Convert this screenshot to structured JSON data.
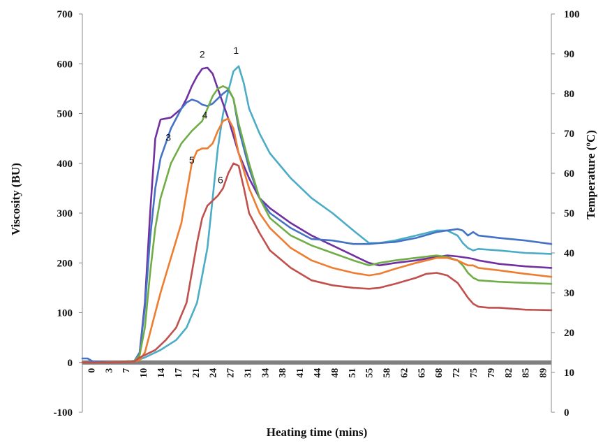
{
  "chart_data": {
    "type": "line",
    "title": "",
    "xlabel": "Heating time (mins)",
    "ylabel": "Viscosity (BU)",
    "y2label": "Temperature (ºC)",
    "xlim": [
      0,
      90
    ],
    "ylim": [
      -100,
      700
    ],
    "y2lim": [
      0,
      100
    ],
    "xticks": [
      "0",
      "3",
      "7",
      "10",
      "14",
      "17",
      "21",
      "24",
      "27",
      "31",
      "34",
      "38",
      "41",
      "44",
      "48",
      "51",
      "55",
      "58",
      "62",
      "65",
      "68",
      "72",
      "75",
      "79",
      "82",
      "85",
      "89"
    ],
    "yticks": [
      -100,
      0,
      100,
      200,
      300,
      400,
      500,
      600,
      700
    ],
    "y2ticks": [
      0,
      10,
      20,
      30,
      40,
      50,
      60,
      70,
      80,
      90,
      100
    ],
    "grid": false,
    "legend": "none",
    "baseline": {
      "y": 0,
      "color": "#7f7f7f"
    },
    "series": [
      {
        "name": "1",
        "color": "#4bacc6",
        "x": [
          0,
          5,
          10,
          12,
          15,
          18,
          20,
          22,
          24,
          25,
          26,
          27,
          28,
          29,
          30,
          31,
          32,
          34,
          36,
          40,
          44,
          48,
          52,
          55,
          57,
          60,
          64,
          68,
          70,
          72,
          73,
          74,
          75,
          76,
          80,
          85,
          90
        ],
        "y": [
          0,
          0,
          3,
          10,
          25,
          45,
          70,
          120,
          230,
          330,
          430,
          500,
          545,
          585,
          595,
          560,
          510,
          460,
          420,
          370,
          330,
          300,
          265,
          240,
          240,
          245,
          255,
          265,
          265,
          255,
          240,
          230,
          225,
          228,
          225,
          220,
          218
        ]
      },
      {
        "name": "2",
        "color": "#7030a0",
        "x": [
          0,
          5,
          10,
          11,
          12,
          13,
          14,
          15,
          17,
          19,
          20,
          21,
          22,
          23,
          24,
          25,
          26,
          28,
          30,
          32,
          34,
          36,
          40,
          44,
          48,
          52,
          55,
          57,
          60,
          64,
          68,
          70,
          72,
          74,
          75,
          76,
          80,
          85,
          90
        ],
        "y": [
          0,
          0,
          3,
          20,
          120,
          300,
          450,
          488,
          492,
          510,
          530,
          555,
          575,
          590,
          592,
          580,
          550,
          490,
          420,
          370,
          330,
          310,
          280,
          255,
          235,
          215,
          200,
          195,
          200,
          205,
          212,
          215,
          213,
          210,
          208,
          205,
          198,
          193,
          190
        ]
      },
      {
        "name": "3",
        "color": "#4472c4",
        "x": [
          0,
          1,
          2,
          5,
          10,
          11,
          12,
          13,
          14,
          15,
          17,
          19,
          20,
          21,
          22,
          23,
          24,
          25,
          26,
          27,
          28,
          29,
          30,
          32,
          34,
          36,
          40,
          44,
          48,
          52,
          55,
          57,
          60,
          64,
          68,
          70,
          72,
          73,
          74,
          75,
          76,
          80,
          85,
          90
        ],
        "y": [
          8,
          8,
          2,
          0,
          3,
          20,
          110,
          250,
          350,
          410,
          470,
          510,
          522,
          528,
          525,
          518,
          515,
          520,
          530,
          540,
          548,
          530,
          470,
          390,
          330,
          300,
          270,
          248,
          245,
          238,
          238,
          240,
          242,
          250,
          262,
          265,
          268,
          265,
          255,
          262,
          255,
          250,
          245,
          238
        ]
      },
      {
        "name": "4",
        "color": "#70ad47",
        "x": [
          0,
          5,
          10,
          11,
          12,
          13,
          14,
          15,
          17,
          19,
          21,
          22,
          23,
          24,
          25,
          26,
          27,
          28,
          29,
          30,
          32,
          34,
          36,
          40,
          44,
          48,
          52,
          55,
          57,
          60,
          64,
          68,
          70,
          72,
          73,
          74,
          75,
          76,
          80,
          85,
          90
        ],
        "y": [
          0,
          0,
          3,
          15,
          70,
          180,
          270,
          330,
          400,
          440,
          465,
          475,
          485,
          510,
          535,
          550,
          555,
          550,
          530,
          480,
          400,
          330,
          290,
          255,
          235,
          220,
          205,
          195,
          200,
          205,
          210,
          215,
          212,
          205,
          195,
          180,
          170,
          165,
          162,
          160,
          158
        ]
      },
      {
        "name": "5",
        "color": "#ed7d31",
        "x": [
          0,
          5,
          10,
          11,
          12,
          13,
          14,
          15,
          17,
          19,
          20,
          21,
          22,
          23,
          24,
          25,
          26,
          27,
          28,
          29,
          30,
          32,
          34,
          36,
          40,
          44,
          48,
          52,
          55,
          57,
          60,
          64,
          68,
          70,
          72,
          73,
          74,
          75,
          76,
          80,
          85,
          90
        ],
        "y": [
          0,
          0,
          2,
          5,
          20,
          60,
          100,
          140,
          210,
          280,
          340,
          400,
          425,
          430,
          430,
          440,
          465,
          485,
          490,
          470,
          420,
          350,
          300,
          270,
          230,
          205,
          190,
          180,
          175,
          178,
          188,
          200,
          210,
          210,
          205,
          200,
          195,
          195,
          190,
          185,
          178,
          172
        ]
      },
      {
        "name": "6",
        "color": "#c0504d",
        "x": [
          0,
          5,
          10,
          11,
          12,
          14,
          16,
          18,
          20,
          21,
          22,
          23,
          24,
          25,
          26,
          27,
          28,
          29,
          30,
          31,
          32,
          34,
          36,
          40,
          44,
          48,
          52,
          55,
          57,
          60,
          64,
          66,
          68,
          70,
          72,
          73,
          74,
          75,
          76,
          78,
          80,
          85,
          90
        ],
        "y": [
          0,
          0,
          2,
          10,
          15,
          25,
          45,
          70,
          120,
          180,
          240,
          290,
          315,
          325,
          335,
          350,
          380,
          400,
          395,
          350,
          300,
          260,
          225,
          190,
          165,
          155,
          150,
          148,
          150,
          158,
          170,
          178,
          180,
          175,
          160,
          145,
          130,
          118,
          112,
          110,
          110,
          106,
          105
        ]
      }
    ],
    "series_labels": [
      {
        "text": "1",
        "x": 29.5,
        "y": 620
      },
      {
        "text": "2",
        "x": 23.0,
        "y": 612
      },
      {
        "text": "3",
        "x": 16.5,
        "y": 445
      },
      {
        "text": "4",
        "x": 23.5,
        "y": 490
      },
      {
        "text": "5",
        "x": 21.0,
        "y": 400
      },
      {
        "text": "6",
        "x": 26.5,
        "y": 360
      }
    ]
  }
}
